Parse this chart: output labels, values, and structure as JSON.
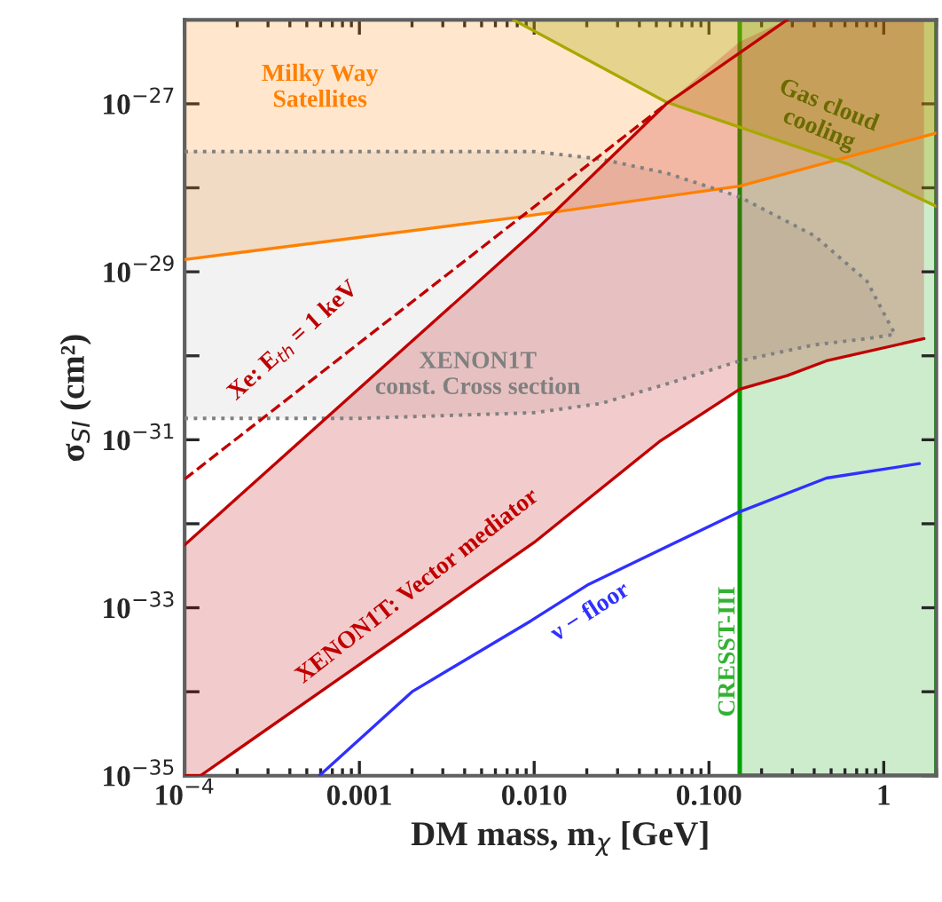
{
  "chart_data": {
    "type": "line",
    "xlabel": "DM mass, m$_{χ}$ [GeV]",
    "ylabel": "σ$_{SI}$ (cm²)",
    "log": "xy",
    "xlim": [
      0.0001,
      2
    ],
    "ylim": [
      1e-35,
      1e-26
    ],
    "xticks": [
      {
        "value": 0.0001,
        "label": "10$^{−4}$"
      },
      {
        "value": 0.001,
        "label": "0.001"
      },
      {
        "value": 0.01,
        "label": "0.010"
      },
      {
        "value": 0.1,
        "label": "0.100"
      },
      {
        "value": 1,
        "label": "1"
      }
    ],
    "yticks": [
      {
        "value": 1e-35,
        "label": "10$^{−35}$"
      },
      {
        "value": 1e-34,
        "label": null
      },
      {
        "value": 1e-33,
        "label": "10$^{−33}$"
      },
      {
        "value": 1e-32,
        "label": null
      },
      {
        "value": 1e-31,
        "label": "10$^{−31}$"
      },
      {
        "value": 1e-30,
        "label": null
      },
      {
        "value": 1e-29,
        "label": "10$^{−29}$"
      },
      {
        "value": 1e-28,
        "label": null
      },
      {
        "value": 1e-27,
        "label": "10$^{−27}$"
      }
    ],
    "legend": false,
    "grid": false,
    "series": [
      {
        "name": "Milky Way\nSatellites",
        "color": "#ff8000",
        "line_style": "solid",
        "x": [
          0.0001,
          0.0076,
          0.15,
          2
        ],
        "values": [
          1.4e-29,
          4.4e-29,
          1.05e-28,
          4.5e-28
        ],
        "lower": [
          1.4e-29,
          4.4e-29,
          1.05e-28,
          4.5e-28
        ],
        "upper": [
          1e-26,
          1e-26,
          1e-26,
          1e-26
        ]
      },
      {
        "name": "Gas cloud\ncooling",
        "color": "#a8a800",
        "line_style": "solid",
        "x": [
          0.0076,
          0.057,
          0.63,
          2
        ],
        "values": [
          1e-26,
          1.05e-27,
          1.9e-28,
          6e-29
        ],
        "lower": [
          1e-26,
          1.05e-27,
          1.9e-28,
          6e-29
        ],
        "upper": [
          1e-26,
          1e-26,
          1e-26,
          1e-26
        ]
      },
      {
        "name": "XENON1T\nconst. Cross section",
        "color": "#808080",
        "line_style": "dotted",
        "x": [
          0.0001,
          0.001,
          0.01,
          0.024,
          0.057,
          0.15,
          0.4,
          0.8,
          1.16
        ],
        "values": [
          1.8e-31,
          1.8e-31,
          2.1e-31,
          2.7e-31,
          4.6e-31,
          8.7e-31,
          1.35e-30,
          1.6e-30,
          1.8e-30
        ],
        "lower": [
          1.8e-31,
          1.8e-31,
          2.1e-31,
          2.7e-31,
          4.6e-31,
          8.7e-31,
          1.35e-30,
          1.6e-30,
          1.8e-30
        ],
        "upper": [
          2.7e-28,
          2.7e-28,
          2.7e-28,
          2.2e-28,
          1.5e-28,
          7.8e-29,
          2.7e-29,
          7.8e-30,
          1.8e-30
        ]
      },
      {
        "color": "#808080",
        "line_style": "dotted",
        "x": [
          0.0001,
          0.001,
          0.01,
          0.024,
          0.057,
          0.15,
          0.4,
          0.8,
          1.16
        ],
        "values": [
          2.7e-28,
          2.7e-28,
          2.7e-28,
          2.2e-28,
          1.5e-28,
          7.8e-29,
          2.7e-29,
          7.8e-30,
          1.8e-30
        ]
      },
      {
        "name": "XENON1T: Vector mediator",
        "color": "#c00000",
        "line_style": "solid",
        "x": [
          0.0001,
          0.000123,
          0.01,
          0.052,
          0.15,
          0.28,
          0.47,
          1.7
        ],
        "values": [
          1e-35,
          1e-35,
          6e-33,
          9.5e-32,
          4e-31,
          5.8e-31,
          8.7e-31,
          1.6e-30
        ],
        "lower": [
          1e-35,
          1e-35,
          6e-33,
          9.5e-32,
          4e-31,
          5.8e-31,
          8.7e-31,
          1.6e-30
        ],
        "upper": [
          5.6e-33,
          8e-33,
          3e-29,
          8.5e-28,
          5.5e-27,
          1e-26,
          1e-26,
          1e-26
        ]
      },
      {
        "color": "#c00000",
        "line_style": "solid",
        "x": [
          0.0001,
          0.01,
          0.057,
          0.28
        ],
        "values": [
          5.6e-33,
          3e-29,
          1e-27,
          1e-26
        ]
      },
      {
        "name": "Xe: E$_{th}$ = 1 keV",
        "color": "#c00000",
        "line_style": "dashed",
        "x": [
          0.0001,
          0.057
        ],
        "values": [
          3.4e-32,
          1e-27
        ]
      },
      {
        "name": "ν − floor",
        "color": "#3030ff",
        "line_style": "solid",
        "x": [
          0.00059,
          0.002,
          0.0096,
          0.0205,
          0.145,
          0.47,
          1.6
        ],
        "values": [
          1e-35,
          1e-34,
          7e-34,
          1.9e-33,
          1.35e-32,
          3.5e-32,
          5.2e-32
        ]
      }
    ],
    "bands": [
      {
        "axis": "x",
        "from": 0.15,
        "to": 2,
        "label": "CRESST-III",
        "color": "#00a000"
      }
    ]
  }
}
